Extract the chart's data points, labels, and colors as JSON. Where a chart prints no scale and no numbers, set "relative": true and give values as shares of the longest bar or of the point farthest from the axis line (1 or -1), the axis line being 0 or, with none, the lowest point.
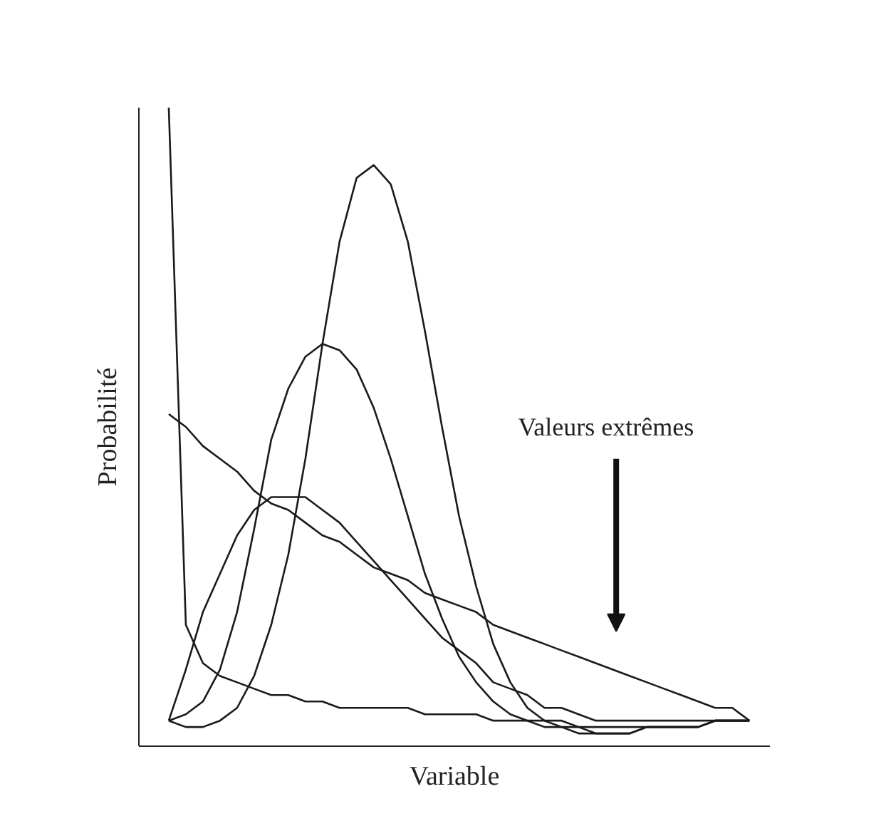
{
  "chart_data": {
    "type": "line",
    "relative": true,
    "xlabel": "Variable",
    "ylabel": "Probabilité",
    "categories": [
      null,
      null,
      null,
      null,
      null,
      null,
      null,
      null,
      null,
      null,
      null,
      null,
      null,
      null,
      null,
      null,
      null,
      null,
      null,
      null,
      null,
      null,
      null,
      null,
      null,
      null,
      null,
      null,
      null,
      null,
      null,
      null,
      null,
      null,
      null
    ],
    "series": [
      {
        "color": "#1a1a1a",
        "values": [
          1.0,
          0.19,
          0.13,
          0.11,
          0.1,
          0.09,
          0.08,
          0.08,
          0.07,
          0.07,
          0.06,
          0.06,
          0.06,
          0.06,
          0.06,
          0.05,
          0.05,
          0.05,
          0.05,
          0.04,
          0.04,
          0.04,
          0.04,
          0.04,
          0.03,
          0.03,
          0.03,
          0.03,
          0.03,
          0.03,
          0.03,
          0.03,
          0.04,
          0.04,
          0.04
        ]
      },
      {
        "color": "#1a1a1a",
        "values": [
          0.52,
          0.5,
          0.47,
          0.45,
          0.43,
          0.4,
          0.38,
          0.37,
          0.35,
          0.33,
          0.32,
          0.3,
          0.28,
          0.27,
          0.26,
          0.24,
          0.23,
          0.22,
          0.21,
          0.19,
          0.18,
          0.17,
          0.16,
          0.15,
          0.14,
          0.13,
          0.12,
          0.11,
          0.1,
          0.09,
          0.08,
          0.07,
          0.06,
          0.06,
          0.04
        ]
      },
      {
        "color": "#1a1a1a",
        "values": [
          0.04,
          0.12,
          0.21,
          0.27,
          0.33,
          0.37,
          0.39,
          0.39,
          0.39,
          0.37,
          0.35,
          0.32,
          0.29,
          0.26,
          0.23,
          0.2,
          0.17,
          0.15,
          0.13,
          0.1,
          0.09,
          0.08,
          0.06,
          0.06,
          0.05,
          0.04,
          0.04,
          0.04,
          0.04,
          0.04,
          0.04,
          0.04,
          0.04,
          0.04,
          0.04
        ]
      },
      {
        "color": "#1a1a1a",
        "values": [
          0.04,
          0.05,
          0.07,
          0.12,
          0.21,
          0.34,
          0.48,
          0.56,
          0.61,
          0.63,
          0.62,
          0.59,
          0.53,
          0.45,
          0.36,
          0.27,
          0.2,
          0.14,
          0.1,
          0.07,
          0.05,
          0.04,
          0.03,
          0.03,
          0.03,
          0.02,
          0.02,
          0.02,
          0.03,
          0.03,
          0.03,
          0.03,
          0.04,
          0.04,
          0.04
        ]
      },
      {
        "color": "#1a1a1a",
        "values": [
          0.04,
          0.03,
          0.03,
          0.04,
          0.06,
          0.11,
          0.19,
          0.3,
          0.45,
          0.63,
          0.79,
          0.89,
          0.91,
          0.88,
          0.79,
          0.65,
          0.5,
          0.36,
          0.25,
          0.16,
          0.1,
          0.06,
          0.04,
          0.03,
          0.02,
          0.02,
          0.02,
          0.02,
          0.03,
          0.03,
          0.03,
          0.03,
          0.04,
          0.04,
          0.04
        ]
      }
    ],
    "annotations": [
      "Valeurs extrêmes"
    ],
    "grid": false,
    "marker": "none",
    "line_style": "solid"
  }
}
